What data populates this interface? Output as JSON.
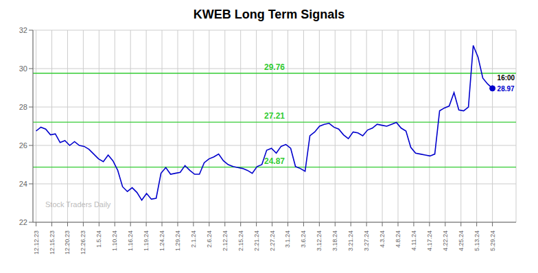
{
  "chart_data": {
    "type": "line",
    "title": "KWEB Long Term Signals",
    "x": [
      0,
      0.3053,
      0.6105,
      0.9158,
      1.2211,
      1.5263,
      1.8316,
      2.1368,
      2.4421,
      2.7474,
      3.0526,
      3.3579,
      3.6632,
      3.9684,
      4.2737,
      4.5789,
      4.8842,
      5.1895,
      5.4947,
      5.8,
      6.1053,
      6.4105,
      6.7158,
      7.0211,
      7.3263,
      7.6316,
      7.9368,
      8.2421,
      8.5474,
      8.8526,
      9.1579,
      9.4632,
      9.7684,
      10.0737,
      10.3789,
      10.6842,
      10.9895,
      11.2947,
      11.6,
      11.9053,
      12.2105,
      12.5158,
      12.8211,
      13.1263,
      13.4316,
      13.7368,
      14.0421,
      14.3474,
      14.6526,
      14.9579,
      15.2632,
      15.5684,
      15.8737,
      16.1789,
      16.4842,
      16.7895,
      17.0947,
      17.4,
      17.7053,
      18.0105,
      18.3158,
      18.6211,
      18.9263,
      19.2316,
      19.5368,
      19.8421,
      20.1474,
      20.4526,
      20.7579,
      21.0632,
      21.3684,
      21.6737,
      21.9789,
      22.2842,
      22.5895,
      22.8947,
      23.2,
      23.5053,
      23.8105,
      24.1158,
      24.4211,
      24.7263,
      25.0316,
      25.3368,
      25.6421,
      25.9474,
      26.2526,
      26.5579,
      26.8632,
      27.1684,
      27.4737,
      27.7789,
      28.0842,
      28.3895,
      28.6947,
      29
    ],
    "series": [
      {
        "color": "#0000cc",
        "values": [
          26.75,
          26.95,
          26.85,
          26.55,
          26.6,
          26.15,
          26.25,
          26.0,
          26.2,
          26.0,
          25.95,
          25.8,
          25.55,
          25.3,
          25.15,
          25.5,
          25.2,
          24.7,
          23.85,
          23.6,
          23.8,
          23.55,
          23.15,
          23.5,
          23.2,
          23.25,
          24.55,
          24.85,
          24.5,
          24.55,
          24.6,
          24.95,
          24.7,
          24.5,
          24.5,
          25.1,
          25.3,
          25.4,
          25.55,
          25.2,
          25.0,
          24.9,
          24.85,
          24.8,
          24.7,
          24.55,
          24.9,
          25.0,
          25.75,
          25.85,
          25.6,
          25.95,
          26.05,
          25.85,
          24.9,
          24.8,
          24.65,
          26.5,
          26.7,
          27.0,
          27.1,
          27.15,
          26.95,
          26.85,
          26.55,
          26.35,
          26.7,
          26.65,
          26.5,
          26.8,
          26.9,
          27.1,
          27.05,
          27.0,
          27.1,
          27.2,
          26.9,
          26.75,
          25.9,
          25.6,
          25.55,
          25.5,
          25.45,
          25.55,
          27.8,
          27.95,
          28.05,
          28.75,
          27.85,
          27.8,
          28.0,
          31.2,
          30.6,
          29.5,
          29.2,
          28.97
        ]
      }
    ],
    "hlines": [
      {
        "y": 29.76,
        "label": "29.76",
        "color": "#33cc33"
      },
      {
        "y": 27.21,
        "label": "27.21",
        "color": "#33cc33"
      },
      {
        "y": 24.87,
        "label": "24.87",
        "color": "#33cc33"
      }
    ],
    "annotations": [
      {
        "text": "16:00"
      },
      {
        "text": "28.97",
        "color": "#0000cc"
      },
      {
        "text": "Stock Traders Daily"
      }
    ],
    "xlim": [
      -0.2,
      30.5
    ],
    "xticks": [
      {
        "value": 0,
        "label": "12.12.23"
      },
      {
        "value": 1,
        "label": "12.15.23"
      },
      {
        "value": 2,
        "label": "12.20.23"
      },
      {
        "value": 3,
        "label": "12.26.23"
      },
      {
        "value": 4,
        "label": "1.5.24"
      },
      {
        "value": 5,
        "label": "1.10.24"
      },
      {
        "value": 6,
        "label": "1.16.24"
      },
      {
        "value": 7,
        "label": "1.19.24"
      },
      {
        "value": 8,
        "label": "1.24.24"
      },
      {
        "value": 9,
        "label": "1.29.24"
      },
      {
        "value": 10,
        "label": "2.1.24"
      },
      {
        "value": 11,
        "label": "2.6.24"
      },
      {
        "value": 12,
        "label": "2.12.24"
      },
      {
        "value": 13,
        "label": "2.15.24"
      },
      {
        "value": 14,
        "label": "2.21.24"
      },
      {
        "value": 15,
        "label": "2.27.24"
      },
      {
        "value": 16,
        "label": "3.1.24"
      },
      {
        "value": 17,
        "label": "3.6.24"
      },
      {
        "value": 18,
        "label": "3.12.24"
      },
      {
        "value": 19,
        "label": "3.18.24"
      },
      {
        "value": 20,
        "label": "3.21.24"
      },
      {
        "value": 21,
        "label": "3.27.24"
      },
      {
        "value": 22,
        "label": "4.3.24"
      },
      {
        "value": 23,
        "label": "4.8.24"
      },
      {
        "value": 24,
        "label": "4.11.24"
      },
      {
        "value": 25,
        "label": "4.17.24"
      },
      {
        "value": 26,
        "label": "4.22.24"
      },
      {
        "value": 27,
        "label": "4.25.24"
      },
      {
        "value": 28,
        "label": "5.13.24"
      },
      {
        "value": 29,
        "label": "5.29.24"
      }
    ],
    "ylim": [
      22,
      32
    ],
    "yticks": [
      22,
      24,
      26,
      28,
      30,
      32
    ],
    "grid": true
  }
}
